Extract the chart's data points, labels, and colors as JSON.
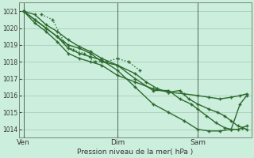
{
  "bg_color": "#cceedd",
  "grid_color": "#aaccbb",
  "line_color": "#2d6a2d",
  "xlabel": "Pression niveau de la mer( hPa )",
  "ylim": [
    1013.5,
    1021.5
  ],
  "yticks": [
    1014,
    1015,
    1016,
    1017,
    1018,
    1019,
    1020,
    1021
  ],
  "xtick_labels": [
    "Ven",
    "Dim",
    "Sam"
  ],
  "xtick_pos": [
    0.0,
    0.42,
    0.78
  ],
  "vline_pos": [
    0.0,
    0.42,
    0.78
  ],
  "xlim": [
    -0.02,
    1.02
  ],
  "series": [
    {
      "x": [
        0.0,
        0.05,
        0.1,
        0.15,
        0.2,
        0.25,
        0.3,
        0.35,
        0.42,
        0.5,
        0.58,
        0.65,
        0.72,
        0.78,
        0.83,
        0.88,
        0.93,
        0.97,
        1.0
      ],
      "y": [
        1021.0,
        1020.3,
        1019.8,
        1019.2,
        1018.5,
        1018.2,
        1018.0,
        1017.8,
        1017.2,
        1016.8,
        1016.4,
        1016.2,
        1016.1,
        1016.0,
        1015.9,
        1015.8,
        1015.9,
        1016.0,
        1016.1
      ],
      "linestyle": "solid",
      "linewidth": 1.0,
      "marker": "+",
      "markersize": 3.5,
      "zorder": 3
    },
    {
      "x": [
        0.0,
        0.05,
        0.1,
        0.15,
        0.2,
        0.25,
        0.3,
        0.35,
        0.42,
        0.5,
        0.58,
        0.65,
        0.72,
        0.78,
        0.83,
        0.88,
        0.93,
        0.97,
        1.0
      ],
      "y": [
        1021.0,
        1020.5,
        1020.0,
        1019.5,
        1018.8,
        1018.5,
        1018.3,
        1018.1,
        1017.5,
        1016.5,
        1015.5,
        1015.0,
        1014.5,
        1014.0,
        1013.9,
        1013.9,
        1014.0,
        1015.5,
        1016.0
      ],
      "linestyle": "solid",
      "linewidth": 1.0,
      "marker": "+",
      "markersize": 3.5,
      "zorder": 3
    },
    {
      "x": [
        0.0,
        0.05,
        0.1,
        0.15,
        0.2,
        0.25,
        0.3,
        0.35,
        0.42,
        0.5,
        0.55,
        0.6,
        0.65,
        0.7,
        0.74,
        0.78,
        0.83,
        0.87,
        0.9,
        0.93,
        0.96,
        0.98,
        1.0
      ],
      "y": [
        1021.0,
        1020.5,
        1020.0,
        1019.5,
        1019.0,
        1018.8,
        1018.5,
        1018.0,
        1017.8,
        1017.3,
        1016.8,
        1016.4,
        1016.2,
        1016.3,
        1015.8,
        1015.5,
        1015.2,
        1015.0,
        1014.8,
        1014.5,
        1014.2,
        1014.1,
        1014.0
      ],
      "linestyle": "solid",
      "linewidth": 1.0,
      "marker": "+",
      "markersize": 3.5,
      "zorder": 3
    },
    {
      "x": [
        0.08,
        0.13,
        0.18,
        0.22,
        0.27,
        0.32,
        0.37,
        0.42,
        0.47,
        0.52
      ],
      "y": [
        1020.8,
        1020.5,
        1019.2,
        1018.7,
        1018.5,
        1018.0,
        1018.0,
        1018.2,
        1018.0,
        1017.5
      ],
      "linestyle": "dotted",
      "linewidth": 1.0,
      "marker": "+",
      "markersize": 3.5,
      "zorder": 2
    },
    {
      "x": [
        0.0,
        0.05,
        0.1,
        0.15,
        0.2,
        0.25,
        0.3,
        0.35,
        0.42,
        0.5,
        0.58,
        0.65,
        0.7,
        0.75,
        0.78,
        0.82,
        0.86,
        0.9,
        0.93,
        0.96,
        0.98,
        1.0
      ],
      "y": [
        1021.0,
        1020.8,
        1020.2,
        1019.8,
        1019.3,
        1018.9,
        1018.6,
        1018.2,
        1017.8,
        1017.0,
        1016.3,
        1016.3,
        1015.8,
        1015.5,
        1015.2,
        1014.8,
        1014.4,
        1014.1,
        1014.0,
        1014.0,
        1014.1,
        1014.2
      ],
      "linestyle": "solid",
      "linewidth": 1.0,
      "marker": "+",
      "markersize": 3.5,
      "zorder": 3
    }
  ]
}
